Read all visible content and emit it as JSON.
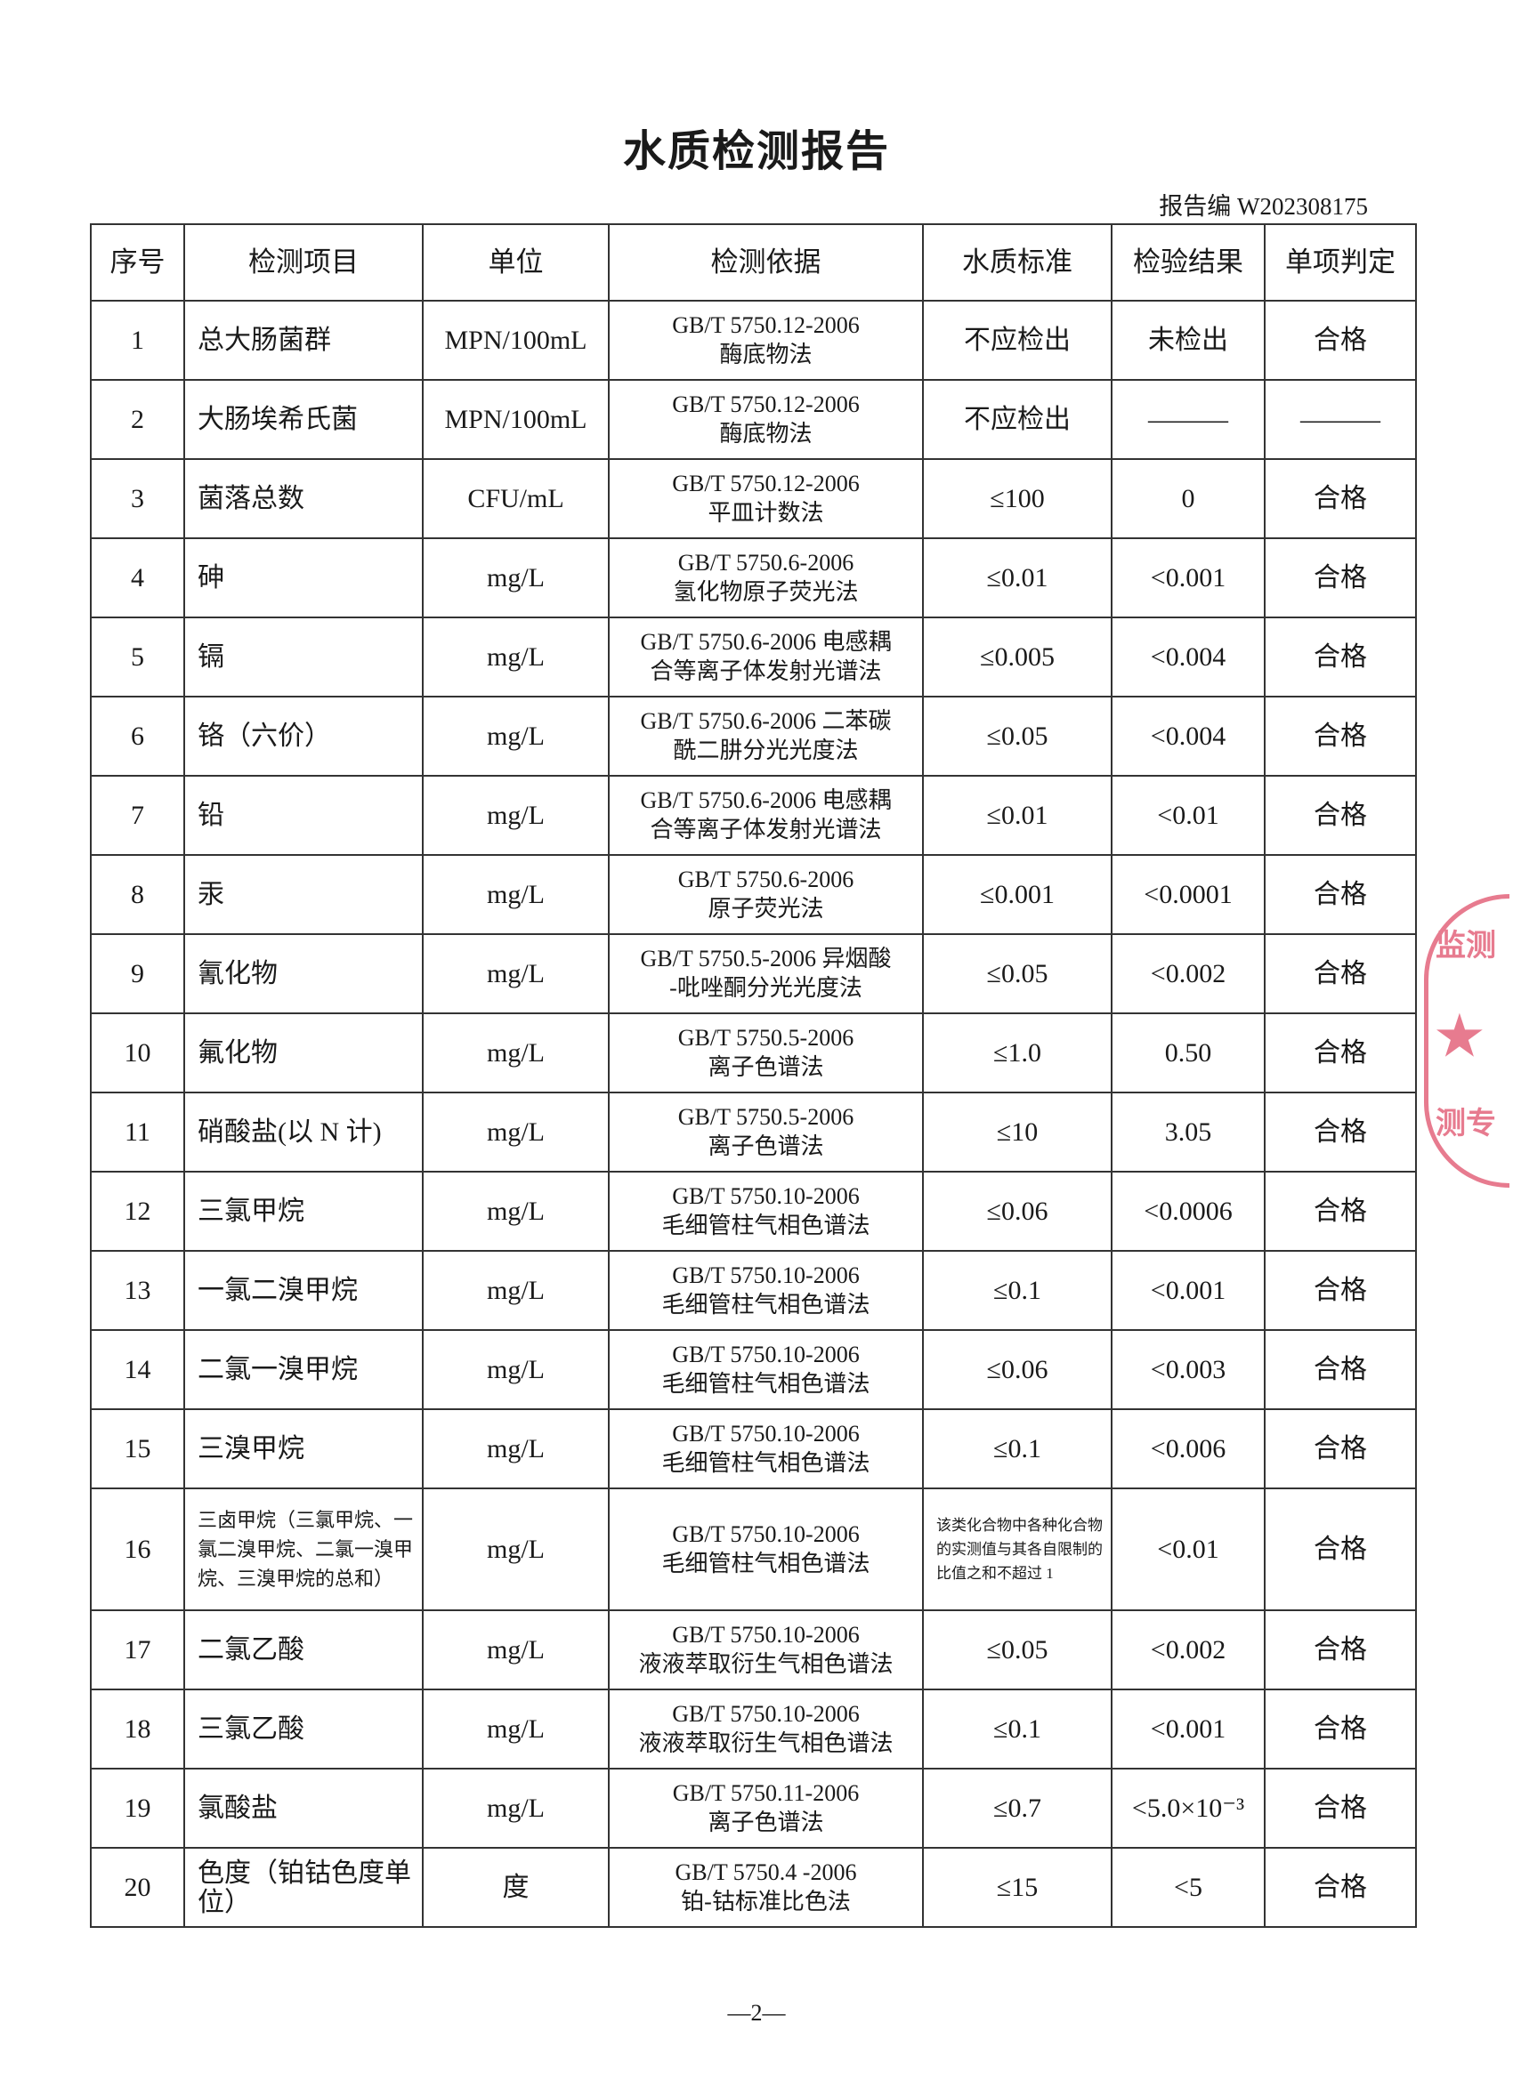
{
  "title": "水质检测报告",
  "report_no": "报告编 W202308175",
  "headers": [
    "序号",
    "检测项目",
    "单位",
    "检测依据",
    "水质标准",
    "检验结果",
    "单项判定"
  ],
  "rows": [
    {
      "no": "1",
      "item": "总大肠菌群",
      "unit": "MPN/100mL",
      "method1": "GB/T 5750.12-2006",
      "method2": "酶底物法",
      "std": "不应检出",
      "result": "未检出",
      "judge": "合格"
    },
    {
      "no": "2",
      "item": "大肠埃希氏菌",
      "unit": "MPN/100mL",
      "method1": "GB/T 5750.12-2006",
      "method2": "酶底物法",
      "std": "不应检出",
      "result": "———",
      "judge": "———"
    },
    {
      "no": "3",
      "item": "菌落总数",
      "unit": "CFU/mL",
      "method1": "GB/T 5750.12-2006",
      "method2": "平皿计数法",
      "std": "≤100",
      "result": "0",
      "judge": "合格"
    },
    {
      "no": "4",
      "item": "砷",
      "unit": "mg/L",
      "method1": "GB/T 5750.6-2006",
      "method2": "氢化物原子荧光法",
      "std": "≤0.01",
      "result": "<0.001",
      "judge": "合格"
    },
    {
      "no": "5",
      "item": "镉",
      "unit": "mg/L",
      "method1": "GB/T 5750.6-2006 电感耦",
      "method2": "合等离子体发射光谱法",
      "std": "≤0.005",
      "result": "<0.004",
      "judge": "合格"
    },
    {
      "no": "6",
      "item": "铬（六价）",
      "unit": "mg/L",
      "method1": "GB/T 5750.6-2006 二苯碳",
      "method2": "酰二肼分光光度法",
      "std": "≤0.05",
      "result": "<0.004",
      "judge": "合格"
    },
    {
      "no": "7",
      "item": "铅",
      "unit": "mg/L",
      "method1": "GB/T 5750.6-2006 电感耦",
      "method2": "合等离子体发射光谱法",
      "std": "≤0.01",
      "result": "<0.01",
      "judge": "合格"
    },
    {
      "no": "8",
      "item": "汞",
      "unit": "mg/L",
      "method1": "GB/T 5750.6-2006",
      "method2": "原子荧光法",
      "std": "≤0.001",
      "result": "<0.0001",
      "judge": "合格"
    },
    {
      "no": "9",
      "item": "氰化物",
      "unit": "mg/L",
      "method1": "GB/T 5750.5-2006 异烟酸",
      "method2": "-吡唑酮分光光度法",
      "std": "≤0.05",
      "result": "<0.002",
      "judge": "合格"
    },
    {
      "no": "10",
      "item": "氟化物",
      "unit": "mg/L",
      "method1": "GB/T 5750.5-2006",
      "method2": "离子色谱法",
      "std": "≤1.0",
      "result": "0.50",
      "judge": "合格"
    },
    {
      "no": "11",
      "item": "硝酸盐(以 N 计)",
      "unit": "mg/L",
      "method1": "GB/T 5750.5-2006",
      "method2": "离子色谱法",
      "std": "≤10",
      "result": "3.05",
      "judge": "合格"
    },
    {
      "no": "12",
      "item": "三氯甲烷",
      "unit": "mg/L",
      "method1": "GB/T 5750.10-2006",
      "method2": "毛细管柱气相色谱法",
      "std": "≤0.06",
      "result": "<0.0006",
      "judge": "合格"
    },
    {
      "no": "13",
      "item": "一氯二溴甲烷",
      "unit": "mg/L",
      "method1": "GB/T 5750.10-2006",
      "method2": "毛细管柱气相色谱法",
      "std": "≤0.1",
      "result": "<0.001",
      "judge": "合格"
    },
    {
      "no": "14",
      "item": "二氯一溴甲烷",
      "unit": "mg/L",
      "method1": "GB/T 5750.10-2006",
      "method2": "毛细管柱气相色谱法",
      "std": "≤0.06",
      "result": "<0.003",
      "judge": "合格"
    },
    {
      "no": "15",
      "item": "三溴甲烷",
      "unit": "mg/L",
      "method1": "GB/T 5750.10-2006",
      "method2": "毛细管柱气相色谱法",
      "std": "≤0.1",
      "result": "<0.006",
      "judge": "合格"
    },
    {
      "no": "16",
      "item": "三卤甲烷（三氯甲烷、一氯二溴甲烷、二氯一溴甲烷、三溴甲烷的总和）",
      "unit": "mg/L",
      "method1": "GB/T 5750.10-2006",
      "method2": "毛细管柱气相色谱法",
      "std": "该类化合物中各种化合物的实测值与其各自限制的比值之和不超过 1",
      "result": "<0.01",
      "judge": "合格"
    },
    {
      "no": "17",
      "item": "二氯乙酸",
      "unit": "mg/L",
      "method1": "GB/T 5750.10-2006",
      "method2": "液液萃取衍生气相色谱法",
      "std": "≤0.05",
      "result": "<0.002",
      "judge": "合格"
    },
    {
      "no": "18",
      "item": "三氯乙酸",
      "unit": "mg/L",
      "method1": "GB/T 5750.10-2006",
      "method2": "液液萃取衍生气相色谱法",
      "std": "≤0.1",
      "result": "<0.001",
      "judge": "合格"
    },
    {
      "no": "19",
      "item": "氯酸盐",
      "unit": "mg/L",
      "method1": "GB/T 5750.11-2006",
      "method2": "离子色谱法",
      "std": "≤0.7",
      "result": "<5.0×10⁻³",
      "judge": "合格"
    },
    {
      "no": "20",
      "item": "色度（铂钴色度单位）",
      "unit": "度",
      "method1": "GB/T 5750.4 -2006",
      "method2": "铂-钴标准比色法",
      "std": "≤15",
      "result": "<5",
      "judge": "合格"
    }
  ],
  "page_number": "—2—",
  "stamp": {
    "text": "监测专用",
    "color": "#e0506a"
  }
}
